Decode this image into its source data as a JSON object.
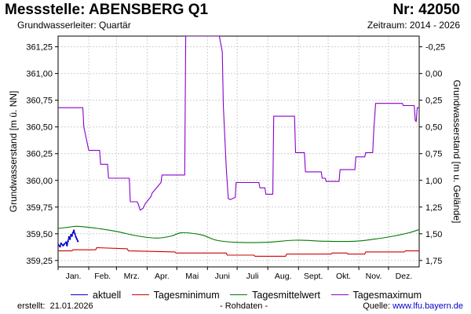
{
  "header": {
    "title": "Messstelle: ABENSBERG Q1",
    "station_nr": "Nr: 42050",
    "aquifer": "Grundwasserleiter: Quartär",
    "period": "Zeitraum: 2014 - 2026"
  },
  "footer": {
    "created_label": "erstellt:",
    "created_date": "21.01.2026",
    "raw_note": "- Rohdaten -",
    "source_label": "Quelle:",
    "source_url": "www.lfu.bayern.de"
  },
  "chart_data": {
    "type": "line",
    "ylabel": "Grundwasserstand [m ü. NN]",
    "ylabel_right": "Grundwasserstand [m u. Gelände]",
    "ylim": [
      359.19,
      361.35
    ],
    "xlim": [
      0,
      365
    ],
    "ground_level_offset": 361.0,
    "y_ticks": [
      359.25,
      359.5,
      359.75,
      360.0,
      360.25,
      360.5,
      360.75,
      361.0,
      361.25
    ],
    "y_tick_labels": [
      "359,25",
      "359,50",
      "359,75",
      "360,00",
      "360,25",
      "360,50",
      "360,75",
      "361,00",
      "361,25"
    ],
    "y_ticks_right": [
      -0.25,
      0.0,
      0.25,
      0.5,
      0.75,
      1.0,
      1.25,
      1.5,
      1.75
    ],
    "y_tick_labels_right": [
      "-0,25",
      "0,00",
      "0,25",
      "0,50",
      "0,75",
      "1,00",
      "1,25",
      "1,50",
      "1,75"
    ],
    "months": [
      "Jan.",
      "Feb.",
      "Mrz.",
      "Apr.",
      "Mai",
      "Juni",
      "Juli",
      "Aug.",
      "Sept.",
      "Okt.",
      "Nov.",
      "Dez."
    ],
    "month_starts": [
      0,
      31,
      59,
      90,
      120,
      151,
      181,
      212,
      243,
      273,
      304,
      334
    ],
    "grid": true,
    "legend_position": "bottom",
    "series": [
      {
        "name": "aktuell",
        "color": "#0000cc",
        "x": [
          0,
          2,
          3,
          5,
          6,
          8,
          9,
          10,
          11,
          12,
          13,
          14,
          15,
          16,
          17,
          18,
          19,
          20
        ],
        "y": [
          359.4,
          359.38,
          359.41,
          359.39,
          359.4,
          359.42,
          359.39,
          359.43,
          359.47,
          359.45,
          359.49,
          359.48,
          359.51,
          359.53,
          359.5,
          359.47,
          359.45,
          359.43
        ]
      },
      {
        "name": "Tagesminimum",
        "color": "#cc0000",
        "x": [
          0,
          14,
          15,
          38,
          39,
          70,
          71,
          118,
          119,
          170,
          171,
          198,
          199,
          230,
          231,
          276,
          277,
          292,
          293,
          310,
          311,
          350,
          351,
          365
        ],
        "y": [
          359.34,
          359.34,
          359.35,
          359.35,
          359.37,
          359.36,
          359.34,
          359.33,
          359.32,
          359.32,
          359.3,
          359.3,
          359.29,
          359.29,
          359.31,
          359.31,
          359.32,
          359.32,
          359.31,
          359.31,
          359.33,
          359.33,
          359.34,
          359.34
        ]
      },
      {
        "name": "Tagesmittelwert",
        "color": "#007a00",
        "x": [
          0,
          10,
          20,
          40,
          60,
          80,
          100,
          115,
          125,
          145,
          160,
          180,
          210,
          240,
          270,
          300,
          320,
          340,
          355,
          365
        ],
        "y": [
          359.55,
          359.56,
          359.57,
          359.55,
          359.52,
          359.48,
          359.46,
          359.48,
          359.51,
          359.49,
          359.44,
          359.42,
          359.42,
          359.44,
          359.43,
          359.43,
          359.45,
          359.48,
          359.51,
          359.54
        ],
        "smooth": true
      },
      {
        "name": "Tagesmaximum",
        "color": "#8800cc",
        "x": [
          0,
          25,
          26,
          31,
          42,
          43,
          50,
          51,
          72,
          73,
          80,
          81,
          83,
          86,
          88,
          94,
          95,
          104,
          105,
          128,
          129,
          133,
          134,
          162,
          163,
          166,
          167,
          170,
          172,
          174,
          179,
          180,
          203,
          204,
          209,
          210,
          217,
          218,
          239,
          240,
          249,
          250,
          266,
          267,
          270,
          271,
          284,
          285,
          300,
          301,
          310,
          311,
          318,
          319,
          321,
          323,
          348,
          349,
          360,
          361,
          362,
          363,
          365
        ],
        "y": [
          360.68,
          360.68,
          360.5,
          360.28,
          360.28,
          360.15,
          360.15,
          360.02,
          360.02,
          359.8,
          359.8,
          359.78,
          359.72,
          359.74,
          359.78,
          359.85,
          359.88,
          359.98,
          360.05,
          360.05,
          361.35,
          361.35,
          361.35,
          361.35,
          361.35,
          361.2,
          360.7,
          360.12,
          359.83,
          359.82,
          359.84,
          359.98,
          359.98,
          359.93,
          359.93,
          359.87,
          359.87,
          360.6,
          360.6,
          360.26,
          360.26,
          360.08,
          360.08,
          360.02,
          360.02,
          359.99,
          359.99,
          360.1,
          360.1,
          360.22,
          360.22,
          360.26,
          360.26,
          360.45,
          360.72,
          360.72,
          360.72,
          360.7,
          360.7,
          360.56,
          360.55,
          360.68,
          360.68
        ]
      }
    ]
  }
}
